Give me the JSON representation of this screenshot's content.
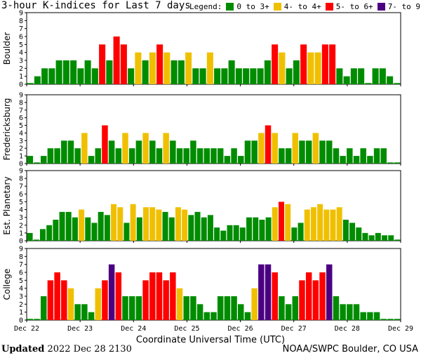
{
  "chart_data": {
    "type": "bar",
    "title": "3-hour K-indices for Last 7 days",
    "xlabel": "Coordinate Universal Time (UTC)",
    "ylim": [
      0,
      9
    ],
    "yticks": [
      "0",
      "1",
      "2",
      "3",
      "4",
      "5",
      "6",
      "7",
      "8",
      "9"
    ],
    "xticks": [
      "Dec 22",
      "Dec 23",
      "Dec 24",
      "Dec 25",
      "Dec 26",
      "Dec 27",
      "Dec 28",
      "Dec 29"
    ],
    "legend": {
      "label": "Legend:",
      "items": [
        {
          "label": "0 to 3+",
          "color": "#008c00"
        },
        {
          "label": "4- to 4+",
          "color": "#f0c000"
        },
        {
          "label": "5- to 6+",
          "color": "#ff0000"
        },
        {
          "label": "7- to 9",
          "color": "#4b0082"
        }
      ]
    },
    "series": [
      {
        "name": "Boulder",
        "values": [
          0,
          1,
          2,
          2,
          3,
          3,
          3,
          2,
          3,
          2,
          5,
          3,
          6,
          5,
          2,
          4,
          3,
          4,
          5,
          4,
          3,
          3,
          4,
          2,
          2,
          4,
          2,
          2,
          3,
          2,
          2,
          2,
          2,
          3,
          5,
          4,
          2,
          3,
          5,
          4,
          4,
          5,
          5,
          2,
          1,
          2,
          2,
          0,
          2,
          2,
          1,
          0
        ]
      },
      {
        "name": "Fredericksburg",
        "values": [
          1,
          0,
          1,
          2,
          2,
          3,
          3,
          2,
          4,
          1,
          2,
          5,
          3,
          2,
          4,
          2,
          3,
          4,
          3,
          2,
          4,
          3,
          2,
          2,
          3,
          2,
          2,
          2,
          2,
          1,
          2,
          1,
          3,
          3,
          4,
          5,
          4,
          2,
          2,
          4,
          3,
          3,
          4,
          3,
          3,
          2,
          1,
          2,
          1,
          2,
          1,
          2,
          2,
          0,
          0
        ]
      },
      {
        "name": "Est. Planetary",
        "values": [
          1,
          0,
          1.5,
          2,
          2.7,
          3.7,
          3.7,
          3,
          4,
          3,
          2.3,
          3.7,
          3.3,
          4.7,
          4.3,
          2.3,
          4.7,
          3,
          4.3,
          4.3,
          4,
          3.7,
          3,
          4.3,
          4,
          3.3,
          3.7,
          3,
          3.3,
          1.7,
          1.3,
          2,
          2,
          1.7,
          3,
          3,
          2.7,
          3,
          4.3,
          5,
          4.7,
          1.7,
          2.3,
          4,
          4.3,
          4.7,
          4,
          4,
          4.3,
          2.7,
          2.3,
          1.7,
          1,
          0.7,
          1,
          0.7,
          0.7,
          0
        ]
      },
      {
        "name": "College",
        "values": [
          0,
          0,
          3,
          5,
          6,
          5,
          4,
          2,
          2,
          1,
          4,
          5,
          7,
          6,
          3,
          3,
          3,
          5,
          6,
          6,
          5,
          6,
          4,
          3,
          3,
          2,
          1,
          1,
          3,
          3,
          3,
          2,
          1,
          4,
          7,
          7,
          6,
          3,
          2,
          3,
          5,
          6,
          5,
          6,
          7,
          3,
          2,
          2,
          2,
          1,
          1,
          1,
          0,
          0,
          0
        ]
      }
    ]
  },
  "footer": {
    "updated_label": "Updated",
    "updated_value": "2022 Dec 28 2130",
    "source": "NOAA/SWPC Boulder, CO USA"
  }
}
